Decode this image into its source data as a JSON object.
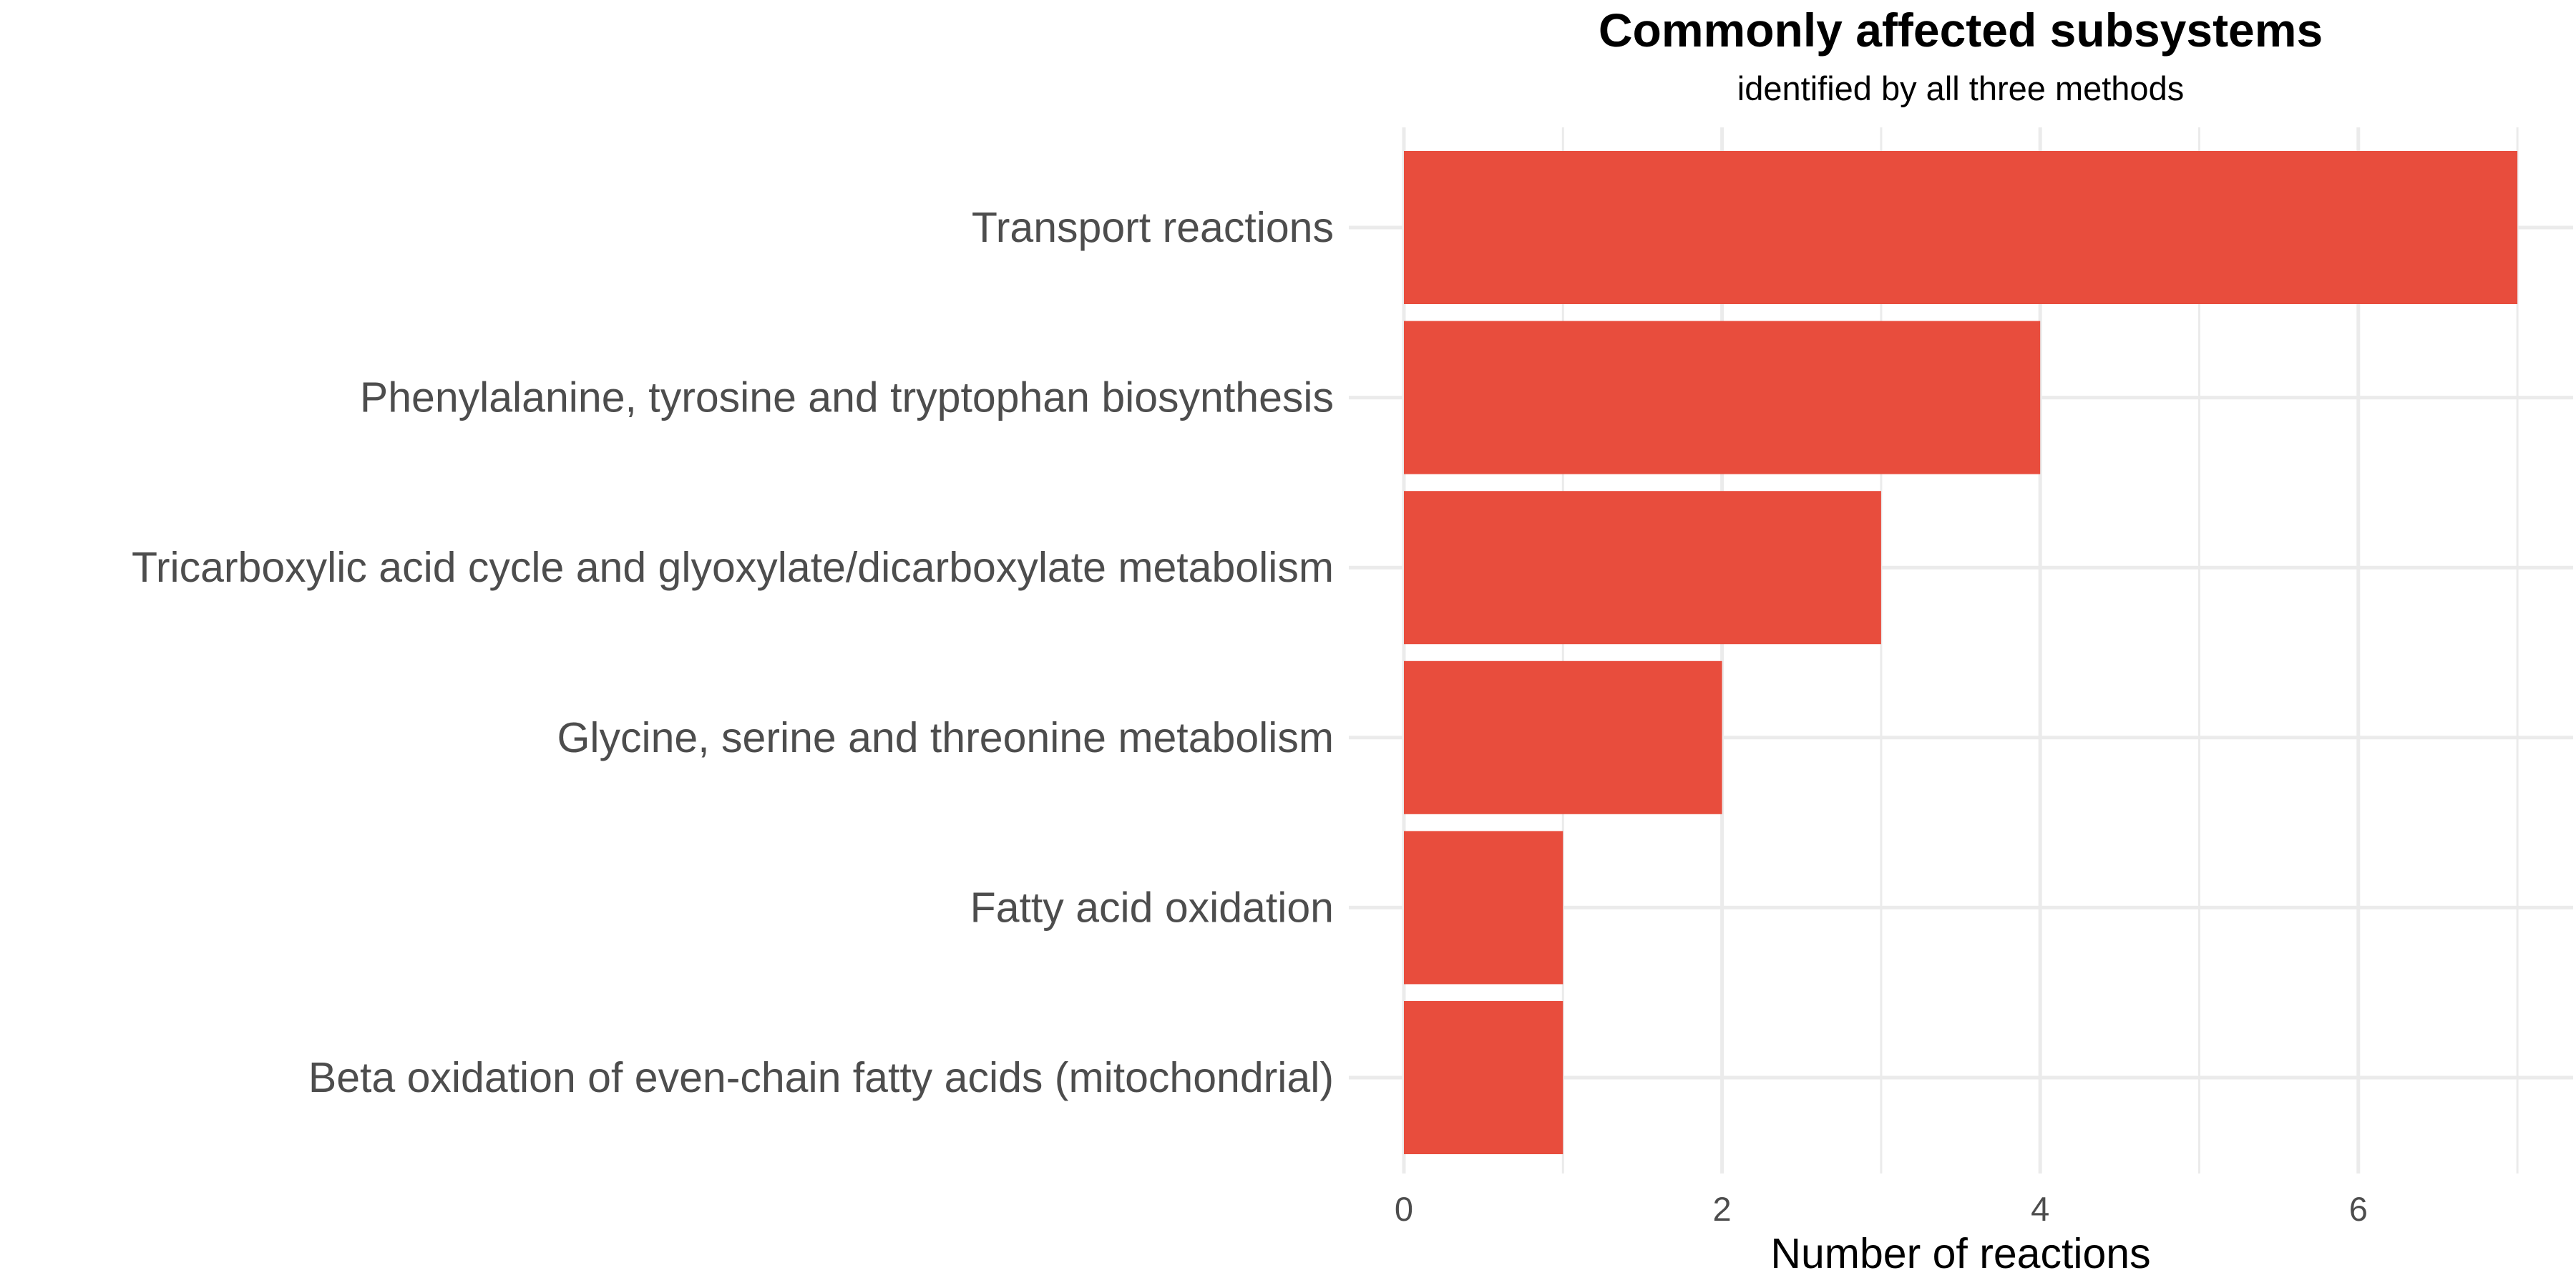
{
  "chart_data": {
    "type": "bar",
    "orientation": "horizontal",
    "title": "Commonly affected subsystems",
    "subtitle": "identified by all three methods",
    "xlabel": "Number of reactions",
    "ylabel": "",
    "categories": [
      "Transport reactions",
      "Phenylalanine, tyrosine and tryptophan biosynthesis",
      "Tricarboxylic acid cycle and glyoxylate/dicarboxylate metabolism",
      "Glycine, serine and threonine metabolism",
      "Fatty acid oxidation",
      "Beta oxidation of even-chain fatty acids (mitochondrial)"
    ],
    "values": [
      7,
      4,
      3,
      2,
      1,
      1
    ],
    "xlim": [
      0,
      7.35
    ],
    "xticks": [
      "0",
      "2",
      "4",
      "6"
    ],
    "grid": true,
    "legend": "none",
    "bar_color": "#E84D3D",
    "grid_color": "#EBEBEB"
  }
}
